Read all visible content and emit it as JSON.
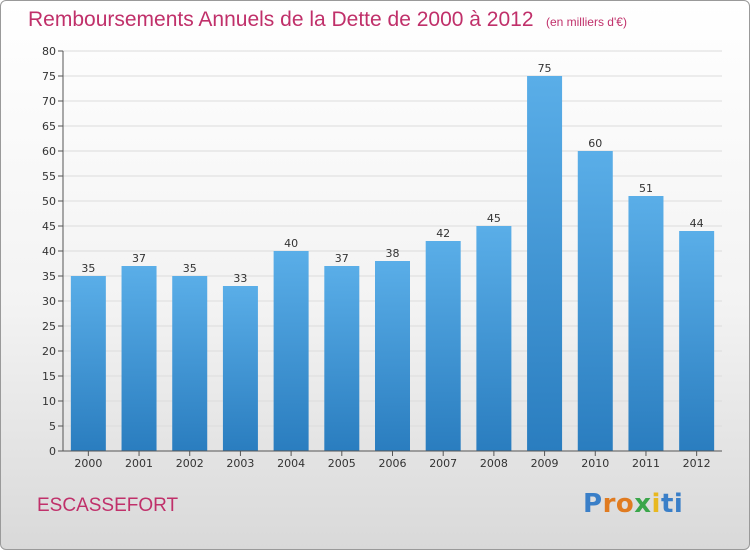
{
  "header": {
    "title": "Remboursements Annuels de la Dette de 2000 à 2012",
    "unit": "(en milliers d'€)"
  },
  "footer": {
    "commune": "ESCASSEFORT",
    "logo_letters": [
      {
        "ch": "P",
        "color": "#3a7fc8"
      },
      {
        "ch": "r",
        "color": "#e07b20"
      },
      {
        "ch": "o",
        "color": "#e07b20"
      },
      {
        "ch": "x",
        "color": "#3aa64a"
      },
      {
        "ch": "i",
        "color": "#e8b820"
      },
      {
        "ch": "t",
        "color": "#3a7fc8"
      },
      {
        "ch": "i",
        "color": "#3a7fc8"
      }
    ]
  },
  "chart_data": {
    "type": "bar",
    "categories": [
      "2000",
      "2001",
      "2002",
      "2003",
      "2004",
      "2005",
      "2006",
      "2007",
      "2008",
      "2009",
      "2010",
      "2011",
      "2012"
    ],
    "values": [
      35,
      37,
      35,
      33,
      40,
      37,
      38,
      42,
      45,
      75,
      60,
      51,
      44
    ],
    "data_labels": [
      "35",
      "37",
      "35",
      "33",
      "40",
      "37",
      "38",
      "42",
      "45",
      "75",
      "60",
      "51",
      "44"
    ],
    "ylim": [
      0,
      80
    ],
    "yticks": [
      0,
      5,
      10,
      15,
      20,
      25,
      30,
      35,
      40,
      45,
      50,
      55,
      60,
      65,
      70,
      75,
      80
    ],
    "ytick_labels": [
      "0",
      "5",
      "10",
      "15",
      "20",
      "25",
      "30",
      "35",
      "40",
      "45",
      "50",
      "55",
      "60",
      "65",
      "70",
      "75",
      "80"
    ],
    "grid": "horizontal",
    "bar_color_top": "#5aaee8",
    "bar_color_bottom": "#2a7dbf"
  }
}
